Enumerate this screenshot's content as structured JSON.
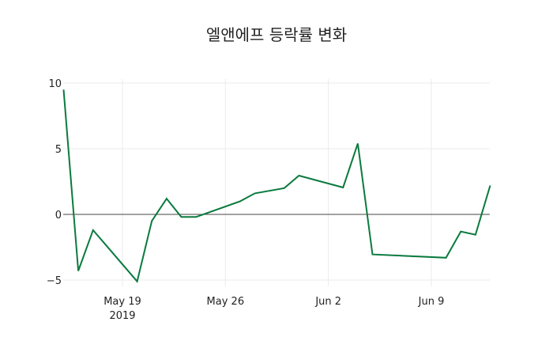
{
  "chart_data": {
    "type": "line",
    "title": "엘앤에프 등락률 변화",
    "xlabel": "",
    "ylabel": "",
    "ylim": [
      -5.5,
      10.5
    ],
    "grid": true,
    "legend": null,
    "line_color": "#0a7a3e",
    "zero_line": true,
    "y_ticks": [
      "10",
      "5",
      "0",
      "−5"
    ],
    "y_tick_values": [
      10,
      5,
      0,
      -5
    ],
    "x_ticks": [
      {
        "label": "May 19",
        "sub": "2019",
        "date": "2019-05-19"
      },
      {
        "label": "May 26",
        "sub": "",
        "date": "2019-05-26"
      },
      {
        "label": "Jun 2",
        "sub": "",
        "date": "2019-06-02"
      },
      {
        "label": "Jun 9",
        "sub": "",
        "date": "2019-06-09"
      }
    ],
    "x": [
      "2019-05-15",
      "2019-05-16",
      "2019-05-17",
      "2019-05-20",
      "2019-05-21",
      "2019-05-22",
      "2019-05-23",
      "2019-05-24",
      "2019-05-27",
      "2019-05-28",
      "2019-05-30",
      "2019-05-31",
      "2019-06-03",
      "2019-06-04",
      "2019-06-05",
      "2019-06-10",
      "2019-06-11",
      "2019-06-12",
      "2019-06-13"
    ],
    "values": [
      9.5,
      -4.3,
      -1.2,
      -5.1,
      -0.5,
      1.2,
      -0.2,
      -0.2,
      1.0,
      1.6,
      2.0,
      2.95,
      2.05,
      5.4,
      -3.05,
      -3.3,
      -1.3,
      -1.55,
      2.2
    ]
  }
}
